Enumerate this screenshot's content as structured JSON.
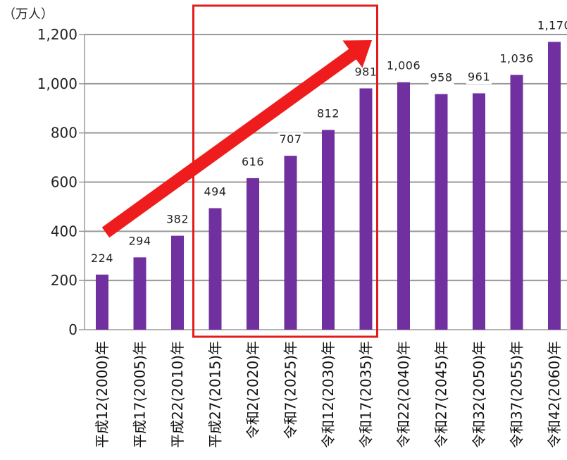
{
  "chart_data": {
    "type": "bar",
    "unit_label": "（万人）",
    "categories": [
      "平成12(2000)年",
      "平成17(2005)年",
      "平成22(2010)年",
      "平成27(2015)年",
      "令和2(2020)年",
      "令和7(2025)年",
      "令和12(2030)年",
      "令和17(2035)年",
      "令和22(2040)年",
      "令和27(2045)年",
      "令和32(2050)年",
      "令和37(2055)年",
      "令和42(2060)年"
    ],
    "values": [
      224,
      294,
      382,
      494,
      616,
      707,
      812,
      981,
      1006,
      958,
      961,
      1036,
      1170
    ],
    "value_labels": [
      "224",
      "294",
      "382",
      "494",
      "616",
      "707",
      "812",
      "981",
      "1,006",
      "958",
      "961",
      "1,036",
      "1,170"
    ],
    "ylim": [
      0,
      1200
    ],
    "yticks": [
      0,
      200,
      400,
      600,
      800,
      1000,
      1200
    ],
    "ytick_labels": [
      "0",
      "200",
      "400",
      "600",
      "800",
      "1,000",
      "1,200"
    ],
    "grid": true,
    "colors": {
      "bar": "#7030a0",
      "highlight": "#e31b1b",
      "arrow": "#ee1c1c",
      "grid": "#9a9a9a"
    },
    "highlight_range": [
      "平成27(2015)年",
      "令和17(2035)年"
    ]
  }
}
